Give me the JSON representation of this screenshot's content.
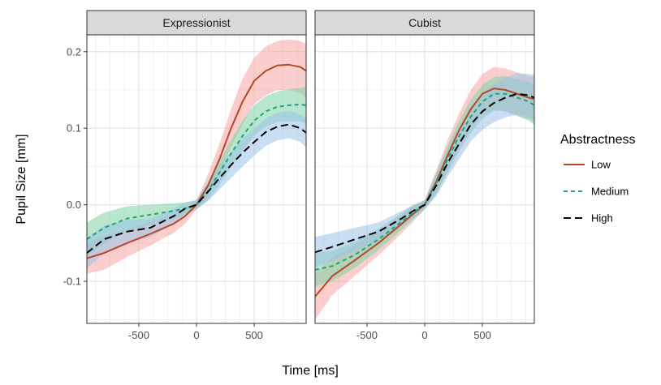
{
  "chart_data": {
    "type": "line",
    "xlabel": "Time [ms]",
    "ylabel": "Pupil Size [mm]",
    "xlim": [
      -950,
      950
    ],
    "ylim": [
      -0.155,
      0.222
    ],
    "x_ticks": [
      -500,
      0,
      500
    ],
    "x_tick_labels": [
      "-500",
      "0",
      "500"
    ],
    "y_ticks": [
      -0.1,
      0.0,
      0.1,
      0.2
    ],
    "y_tick_labels": [
      "-0.1",
      "0.0",
      "0.1",
      "0.2"
    ],
    "grid": true,
    "legend": {
      "title": "Abstractness",
      "placement": "right",
      "entries": [
        "Low",
        "Medium",
        "High"
      ]
    },
    "series_styles": [
      {
        "name": "Low",
        "color": "#B5482A",
        "band": "#F4A6A3",
        "dash": "solid"
      },
      {
        "name": "Medium",
        "color": "#1FA37A",
        "band": "#7FD3A6",
        "dash": "short-dash"
      },
      {
        "name": "High",
        "color": "#000000",
        "band": "#9CC3E8",
        "dash": "long-dash"
      }
    ],
    "panels": [
      {
        "title": "Expressionist",
        "x": [
          -950,
          -800,
          -600,
          -400,
          -200,
          -100,
          0,
          100,
          200,
          300,
          400,
          500,
          600,
          700,
          800,
          900,
          950
        ],
        "series": [
          {
            "name": "Low",
            "values": [
              -0.07,
              -0.063,
              -0.05,
              -0.038,
              -0.025,
              -0.015,
              0.0,
              0.025,
              0.06,
              0.1,
              0.135,
              0.162,
              0.175,
              0.182,
              0.183,
              0.18,
              0.175
            ],
            "band": [
              0.02,
              0.022,
              0.018,
              0.015,
              0.012,
              0.01,
              0.006,
              0.015,
              0.02,
              0.025,
              0.03,
              0.03,
              0.032,
              0.032,
              0.033,
              0.034,
              0.035
            ]
          },
          {
            "name": "Medium",
            "values": [
              -0.045,
              -0.03,
              -0.018,
              -0.013,
              -0.008,
              -0.005,
              0.0,
              0.018,
              0.042,
              0.067,
              0.09,
              0.11,
              0.122,
              0.128,
              0.13,
              0.131,
              0.13
            ],
            "band": [
              0.022,
              0.02,
              0.016,
              0.013,
              0.01,
              0.008,
              0.006,
              0.012,
              0.016,
              0.018,
              0.02,
              0.02,
              0.02,
              0.02,
              0.021,
              0.022,
              0.024
            ]
          },
          {
            "name": "High",
            "values": [
              -0.063,
              -0.045,
              -0.035,
              -0.03,
              -0.015,
              -0.005,
              0.0,
              0.017,
              0.035,
              0.052,
              0.068,
              0.082,
              0.095,
              0.102,
              0.105,
              0.1,
              0.094
            ],
            "band": [
              0.02,
              0.018,
              0.015,
              0.012,
              0.01,
              0.008,
              0.006,
              0.012,
              0.015,
              0.017,
              0.018,
              0.018,
              0.018,
              0.018,
              0.018,
              0.018,
              0.019
            ]
          }
        ]
      },
      {
        "title": "Cubist",
        "x": [
          -950,
          -800,
          -600,
          -400,
          -200,
          -100,
          0,
          100,
          200,
          300,
          400,
          500,
          600,
          700,
          800,
          900,
          950
        ],
        "series": [
          {
            "name": "Low",
            "values": [
              -0.12,
              -0.093,
              -0.072,
              -0.05,
              -0.025,
              -0.012,
              0.0,
              0.03,
              0.065,
              0.098,
              0.125,
              0.145,
              0.152,
              0.15,
              0.145,
              0.14,
              0.138
            ],
            "band": [
              0.03,
              0.025,
              0.02,
              0.016,
              0.012,
              0.01,
              0.006,
              0.015,
              0.02,
              0.022,
              0.025,
              0.026,
              0.028,
              0.028,
              0.028,
              0.028,
              0.03
            ]
          },
          {
            "name": "Medium",
            "values": [
              -0.085,
              -0.08,
              -0.065,
              -0.045,
              -0.022,
              -0.01,
              0.0,
              0.028,
              0.06,
              0.09,
              0.115,
              0.135,
              0.145,
              0.145,
              0.14,
              0.135,
              0.13
            ],
            "band": [
              0.022,
              0.02,
              0.017,
              0.014,
              0.011,
              0.009,
              0.006,
              0.014,
              0.018,
              0.02,
              0.022,
              0.022,
              0.022,
              0.023,
              0.024,
              0.025,
              0.026
            ]
          },
          {
            "name": "High",
            "values": [
              -0.062,
              -0.055,
              -0.045,
              -0.035,
              -0.018,
              -0.008,
              0.0,
              0.025,
              0.055,
              0.08,
              0.105,
              0.122,
              0.133,
              0.14,
              0.145,
              0.143,
              0.14
            ],
            "band": [
              0.02,
              0.018,
              0.015,
              0.012,
              0.01,
              0.008,
              0.006,
              0.014,
              0.018,
              0.02,
              0.022,
              0.024,
              0.025,
              0.026,
              0.027,
              0.028,
              0.03
            ]
          }
        ]
      }
    ]
  }
}
